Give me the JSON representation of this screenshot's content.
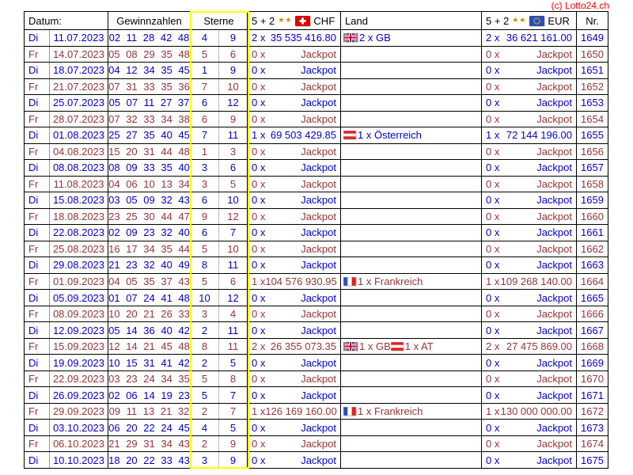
{
  "copyright": "(c) Lotto24.ch",
  "header": {
    "datum": "Datum:",
    "gewinnzahlen": "Gewinnzahlen",
    "sterne": "Sterne",
    "prize_prefix": "5 + 2",
    "stars_icon": "★★",
    "chf_currency": "CHF",
    "land": "Land",
    "eur_currency": "EUR",
    "nr": "Nr."
  },
  "colors": {
    "tuesday_row_blue": "#0000cc",
    "friday_row_red": "#993333",
    "copyright_red": "#ff0000",
    "sterne_highlight_yellow": "#ffff00"
  },
  "rows": [
    {
      "day": "Di",
      "date": "11.07.2023",
      "numbers": "02 11 28 42 48",
      "star1": "4",
      "star2": "9",
      "chf_count": "2 x",
      "chf_amount": "35 535 416.80",
      "land": [
        {
          "flag": "gb",
          "text": "2 x GB"
        }
      ],
      "eur_count": "2 x",
      "eur_amount": "36 621 161.00",
      "nr": "1649",
      "color": "blue"
    },
    {
      "day": "Fr",
      "date": "14.07.2023",
      "numbers": "05 08 29 35 48",
      "star1": "5",
      "star2": "6",
      "chf_count": "0 x",
      "chf_amount": "Jackpot",
      "land": [],
      "eur_count": "0 x",
      "eur_amount": "Jackpot",
      "nr": "1650",
      "color": "red"
    },
    {
      "day": "Di",
      "date": "18.07.2023",
      "numbers": "04 12 34 35 45",
      "star1": "1",
      "star2": "9",
      "chf_count": "0 x",
      "chf_amount": "Jackpot",
      "land": [],
      "eur_count": "0 x",
      "eur_amount": "Jackpot",
      "nr": "1651",
      "color": "blue"
    },
    {
      "day": "Fr",
      "date": "21.07.2023",
      "numbers": "07 31 33 35 36",
      "star1": "7",
      "star2": "10",
      "chf_count": "0 x",
      "chf_amount": "Jackpot",
      "land": [],
      "eur_count": "0 x",
      "eur_amount": "Jackpot",
      "nr": "1652",
      "color": "red"
    },
    {
      "day": "Di",
      "date": "25.07.2023",
      "numbers": "05 07 11 27 37",
      "star1": "6",
      "star2": "12",
      "chf_count": "0 x",
      "chf_amount": "Jackpot",
      "land": [],
      "eur_count": "0 x",
      "eur_amount": "Jackpot",
      "nr": "1653",
      "color": "blue"
    },
    {
      "day": "Fr",
      "date": "28.07.2023",
      "numbers": "07 32 33 34 38",
      "star1": "6",
      "star2": "9",
      "chf_count": "0 x",
      "chf_amount": "Jackpot",
      "land": [],
      "eur_count": "0 x",
      "eur_amount": "Jackpot",
      "nr": "1654",
      "color": "red"
    },
    {
      "day": "Di",
      "date": "01.08.2023",
      "numbers": "25 27 35 40 45",
      "star1": "7",
      "star2": "11",
      "chf_count": "1 x",
      "chf_amount": "69 503 429.85",
      "land": [
        {
          "flag": "at",
          "text": "1 x Österreich"
        }
      ],
      "eur_count": "1 x",
      "eur_amount": "72 144 196.00",
      "nr": "1655",
      "color": "blue"
    },
    {
      "day": "Fr",
      "date": "04.08.2023",
      "numbers": "15 20 31 44 48",
      "star1": "1",
      "star2": "3",
      "chf_count": "0 x",
      "chf_amount": "Jackpot",
      "land": [],
      "eur_count": "0 x",
      "eur_amount": "Jackpot",
      "nr": "1656",
      "color": "red"
    },
    {
      "day": "Di",
      "date": "08.08.2023",
      "numbers": "08 09 33 35 40",
      "star1": "3",
      "star2": "6",
      "chf_count": "0 x",
      "chf_amount": "Jackpot",
      "land": [],
      "eur_count": "0 x",
      "eur_amount": "Jackpot",
      "nr": "1657",
      "color": "blue"
    },
    {
      "day": "Fr",
      "date": "11.08.2023",
      "numbers": "04 06 10 13 34",
      "star1": "3",
      "star2": "5",
      "chf_count": "0 x",
      "chf_amount": "Jackpot",
      "land": [],
      "eur_count": "0 x",
      "eur_amount": "Jackpot",
      "nr": "1658",
      "color": "red"
    },
    {
      "day": "Di",
      "date": "15.08.2023",
      "numbers": "03 05 09 32 43",
      "star1": "6",
      "star2": "10",
      "chf_count": "0 x",
      "chf_amount": "Jackpot",
      "land": [],
      "eur_count": "0 x",
      "eur_amount": "Jackpot",
      "nr": "1659",
      "color": "blue"
    },
    {
      "day": "Fr",
      "date": "18.08.2023",
      "numbers": "23 25 30 44 47",
      "star1": "9",
      "star2": "12",
      "chf_count": "0 x",
      "chf_amount": "Jackpot",
      "land": [],
      "eur_count": "0 x",
      "eur_amount": "Jackpot",
      "nr": "1660",
      "color": "red"
    },
    {
      "day": "Di",
      "date": "22.08.2023",
      "numbers": "02 09 23 32 40",
      "star1": "6",
      "star2": "7",
      "chf_count": "0 x",
      "chf_amount": "Jackpot",
      "land": [],
      "eur_count": "0 x",
      "eur_amount": "Jackpot",
      "nr": "1661",
      "color": "blue"
    },
    {
      "day": "Fr",
      "date": "25.08.2023",
      "numbers": "16 17 34 35 44",
      "star1": "5",
      "star2": "10",
      "chf_count": "0 x",
      "chf_amount": "Jackpot",
      "land": [],
      "eur_count": "0 x",
      "eur_amount": "Jackpot",
      "nr": "1662",
      "color": "red"
    },
    {
      "day": "Di",
      "date": "29.08.2023",
      "numbers": "21 23 32 40 49",
      "star1": "8",
      "star2": "11",
      "chf_count": "0 x",
      "chf_amount": "Jackpot",
      "land": [],
      "eur_count": "0 x",
      "eur_amount": "Jackpot",
      "nr": "1663",
      "color": "blue"
    },
    {
      "day": "Fr",
      "date": "01.09.2023",
      "numbers": "04 05 35 37 43",
      "star1": "5",
      "star2": "6",
      "chf_count": "1 x",
      "chf_amount": "104 576 930.95",
      "land": [
        {
          "flag": "fr",
          "text": "1 x Frankreich"
        }
      ],
      "eur_count": "1 x",
      "eur_amount": "109 268 140.00",
      "nr": "1664",
      "color": "red"
    },
    {
      "day": "Di",
      "date": "05.09.2023",
      "numbers": "01 07 24 41 48",
      "star1": "10",
      "star2": "12",
      "chf_count": "0 x",
      "chf_amount": "Jackpot",
      "land": [],
      "eur_count": "0 x",
      "eur_amount": "Jackpot",
      "nr": "1665",
      "color": "blue"
    },
    {
      "day": "Fr",
      "date": "08.09.2023",
      "numbers": "10 20 21 26 33",
      "star1": "3",
      "star2": "4",
      "chf_count": "0 x",
      "chf_amount": "Jackpot",
      "land": [],
      "eur_count": "0 x",
      "eur_amount": "Jackpot",
      "nr": "1666",
      "color": "red"
    },
    {
      "day": "Di",
      "date": "12.09.2023",
      "numbers": "05 14 36 40 42",
      "star1": "2",
      "star2": "11",
      "chf_count": "0 x",
      "chf_amount": "Jackpot",
      "land": [],
      "eur_count": "0 x",
      "eur_amount": "Jackpot",
      "nr": "1667",
      "color": "blue"
    },
    {
      "day": "Fr",
      "date": "15.09.2023",
      "numbers": "12 14 21 45 48",
      "star1": "8",
      "star2": "11",
      "chf_count": "2 x",
      "chf_amount": "26 355 073.35",
      "land": [
        {
          "flag": "gb",
          "text": "1 x GB"
        },
        {
          "flag": "at",
          "text": "1 x AT"
        }
      ],
      "eur_count": "2 x",
      "eur_amount": "27 475 869.00",
      "nr": "1668",
      "color": "red"
    },
    {
      "day": "Di",
      "date": "19.09.2023",
      "numbers": "10 15 31 41 42",
      "star1": "2",
      "star2": "5",
      "chf_count": "0 x",
      "chf_amount": "Jackpot",
      "land": [],
      "eur_count": "0 x",
      "eur_amount": "Jackpot",
      "nr": "1669",
      "color": "blue"
    },
    {
      "day": "Fr",
      "date": "22.09.2023",
      "numbers": "03 23 24 34 35",
      "star1": "5",
      "star2": "8",
      "chf_count": "0 x",
      "chf_amount": "Jackpot",
      "land": [],
      "eur_count": "0 x",
      "eur_amount": "Jackpot",
      "nr": "1670",
      "color": "red"
    },
    {
      "day": "Di",
      "date": "26.09.2023",
      "numbers": "02 06 14 19 23",
      "star1": "5",
      "star2": "7",
      "chf_count": "0 x",
      "chf_amount": "Jackpot",
      "land": [],
      "eur_count": "0 x",
      "eur_amount": "Jackpot",
      "nr": "1671",
      "color": "blue"
    },
    {
      "day": "Fr",
      "date": "29.09.2023",
      "numbers": "09 11 13 21 32",
      "star1": "2",
      "star2": "7",
      "chf_count": "1 x",
      "chf_amount": "126 169 160.00",
      "land": [
        {
          "flag": "fr",
          "text": "1 x Frankreich"
        }
      ],
      "eur_count": "1 x",
      "eur_amount": "130 000 000.00",
      "nr": "1672",
      "color": "red"
    },
    {
      "day": "Di",
      "date": "03.10.2023",
      "numbers": "06 20 22 24 45",
      "star1": "4",
      "star2": "5",
      "chf_count": "0 x",
      "chf_amount": "Jackpot",
      "land": [],
      "eur_count": "0 x",
      "eur_amount": "Jackpot",
      "nr": "1673",
      "color": "blue"
    },
    {
      "day": "Fr",
      "date": "06.10.2023",
      "numbers": "21 29 31 34 43",
      "star1": "2",
      "star2": "9",
      "chf_count": "0 x",
      "chf_amount": "Jackpot",
      "land": [],
      "eur_count": "0 x",
      "eur_amount": "Jackpot",
      "nr": "1674",
      "color": "red"
    },
    {
      "day": "Di",
      "date": "10.10.2023",
      "numbers": "18 20 22 33 43",
      "star1": "3",
      "star2": "9",
      "chf_count": "0 x",
      "chf_amount": "Jackpot",
      "land": [],
      "eur_count": "0 x",
      "eur_amount": "Jackpot",
      "nr": "1675",
      "color": "blue"
    }
  ]
}
